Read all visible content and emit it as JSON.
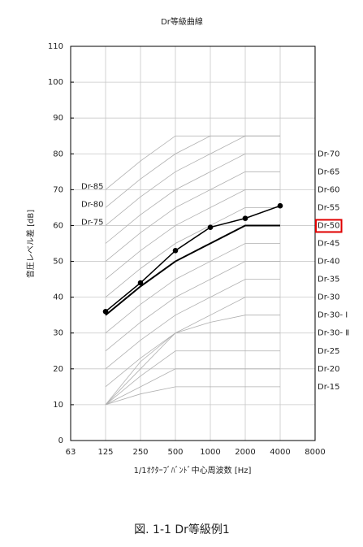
{
  "chart_data": {
    "type": "line",
    "title": "Dr等級曲線",
    "y_label": "音圧レベル差 [dB]",
    "x_label": "1/1ｵｸﾀｰﾌﾞﾊﾞﾝﾄﾞ中心周波数 [Hz]",
    "caption": "図. 1-1 Dr等級例1",
    "categories": [
      "63",
      "125",
      "250",
      "500",
      "1000",
      "2000",
      "4000",
      "8000"
    ],
    "ylim": [
      0,
      110
    ],
    "yticks": [
      0,
      10,
      20,
      30,
      40,
      50,
      60,
      70,
      80,
      90,
      100,
      110
    ],
    "grid": true,
    "highlight_color": "#e00000",
    "series": [
      {
        "name": "Dr-85",
        "color": "#b0b0b0",
        "label_at": "start",
        "values": [
          null,
          70,
          78,
          85,
          85,
          85,
          85,
          null
        ]
      },
      {
        "name": "Dr-80",
        "color": "#b0b0b0",
        "label_at": "start",
        "values": [
          null,
          65,
          73,
          80,
          85,
          85,
          85,
          null
        ]
      },
      {
        "name": "Dr-75",
        "color": "#b0b0b0",
        "label_at": "start",
        "values": [
          null,
          60,
          68,
          75,
          80,
          85,
          85,
          null
        ]
      },
      {
        "name": "Dr-70",
        "color": "#b0b0b0",
        "label_at": "end",
        "values": [
          null,
          55,
          63,
          70,
          75,
          80,
          80,
          null
        ]
      },
      {
        "name": "Dr-65",
        "color": "#b0b0b0",
        "label_at": "end",
        "values": [
          null,
          50,
          58,
          65,
          70,
          75,
          75,
          null
        ]
      },
      {
        "name": "Dr-60",
        "color": "#b0b0b0",
        "label_at": "end",
        "values": [
          null,
          45,
          53,
          60,
          65,
          70,
          70,
          null
        ]
      },
      {
        "name": "Dr-55",
        "color": "#b0b0b0",
        "label_at": "end",
        "values": [
          null,
          40,
          48,
          55,
          60,
          65,
          65,
          null
        ]
      },
      {
        "name": "Dr-50",
        "color": "#000000",
        "label_at": "end",
        "highlight": true,
        "width": 2,
        "values": [
          null,
          35,
          43,
          50,
          55,
          60,
          60,
          null
        ]
      },
      {
        "name": "Dr-45",
        "color": "#b0b0b0",
        "label_at": "end",
        "values": [
          null,
          30,
          38,
          45,
          50,
          55,
          55,
          null
        ]
      },
      {
        "name": "Dr-40",
        "color": "#b0b0b0",
        "label_at": "end",
        "values": [
          null,
          25,
          33,
          40,
          45,
          50,
          50,
          null
        ]
      },
      {
        "name": "Dr-35",
        "color": "#b0b0b0",
        "label_at": "end",
        "values": [
          null,
          20,
          28,
          35,
          40,
          45,
          45,
          null
        ]
      },
      {
        "name": "Dr-30",
        "color": "#b0b0b0",
        "label_at": "end",
        "values": [
          null,
          15,
          23,
          30,
          35,
          40,
          40,
          null
        ]
      },
      {
        "name": "Dr-30- Ⅰ",
        "color": "#b0b0b0",
        "label_at": "end",
        "values": [
          null,
          10,
          22,
          30,
          33,
          35,
          35,
          null
        ]
      },
      {
        "name": "Dr-30- Ⅱ",
        "color": "#b0b0b0",
        "label_at": "end",
        "values": [
          null,
          10,
          20,
          30,
          30,
          30,
          30,
          null
        ]
      },
      {
        "name": "Dr-25",
        "color": "#b0b0b0",
        "label_at": "end",
        "values": [
          null,
          10,
          18,
          25,
          25,
          25,
          25,
          null
        ]
      },
      {
        "name": "Dr-20",
        "color": "#b0b0b0",
        "label_at": "end",
        "values": [
          null,
          10,
          15,
          20,
          20,
          20,
          20,
          null
        ]
      },
      {
        "name": "Dr-15",
        "color": "#b0b0b0",
        "label_at": "end",
        "values": [
          null,
          10,
          13,
          15,
          15,
          15,
          15,
          null
        ]
      },
      {
        "color": "#000000",
        "markers": true,
        "width": 1.5,
        "values": [
          null,
          36,
          44,
          53,
          59.5,
          62,
          65.5,
          null
        ]
      }
    ]
  }
}
